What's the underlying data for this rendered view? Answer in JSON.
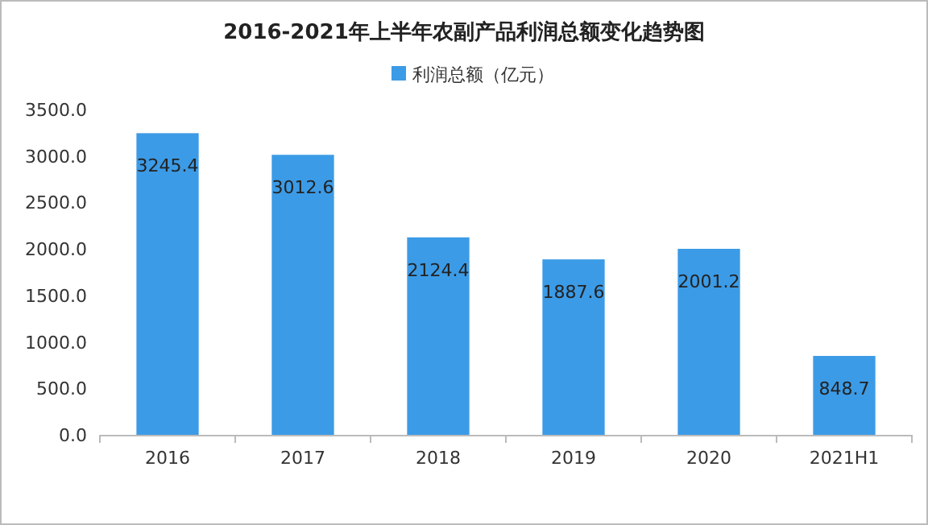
{
  "chart_data": {
    "type": "bar",
    "title": "2016-2021年上半年农副产品利润总额变化趋势图",
    "categories": [
      "2016",
      "2017",
      "2018",
      "2019",
      "2020",
      "2021H1"
    ],
    "series": [
      {
        "name": "利润总额（亿元）",
        "color": "#3c9be6",
        "values": [
          3245.4,
          3012.6,
          2124.4,
          1887.6,
          2001.2,
          848.7
        ]
      }
    ],
    "ylim": [
      0,
      3500
    ],
    "yticks": [
      {
        "value": 0,
        "label": "0.0"
      },
      {
        "value": 500,
        "label": "500.0"
      },
      {
        "value": 1000,
        "label": "1000.0"
      },
      {
        "value": 1500,
        "label": "1500.0"
      },
      {
        "value": 2000,
        "label": "2000.0"
      },
      {
        "value": 2500,
        "label": "2500.0"
      },
      {
        "value": 3000,
        "label": "3000.0"
      },
      {
        "value": 3500,
        "label": "3500.0"
      }
    ],
    "data_labels": true,
    "legend": "top",
    "grid": false
  }
}
